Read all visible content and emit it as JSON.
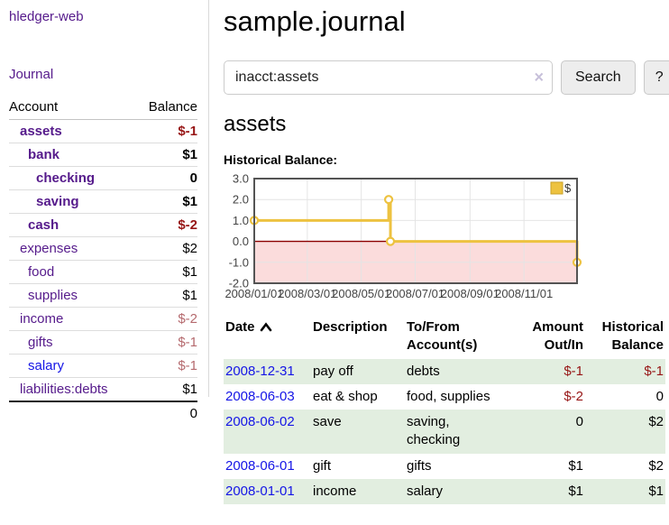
{
  "colors": {
    "link_purple": "#551a8b",
    "link_blue": "#1515e6",
    "negative": "#971616",
    "negative_dim": "#b56a6e",
    "row_shade_green": "#e2eee0",
    "series_gold": "#EDC240"
  },
  "sidebar": {
    "brand": "hledger-web",
    "journal_label": "Journal",
    "accounts_table": {
      "headers": [
        "Account",
        "Balance"
      ],
      "rows": [
        {
          "name": "assets",
          "level": 1,
          "bold": true,
          "balance": "$-1",
          "balance_style": "negative"
        },
        {
          "name": "bank",
          "level": 2,
          "bold": true,
          "balance": "$1",
          "balance_style": "normal"
        },
        {
          "name": "checking",
          "level": 3,
          "bold": true,
          "balance": "0",
          "balance_style": "normal"
        },
        {
          "name": "saving",
          "level": 3,
          "bold": true,
          "balance": "$1",
          "balance_style": "normal"
        },
        {
          "name": "cash",
          "level": 2,
          "bold": true,
          "balance": "$-2",
          "balance_style": "negative"
        },
        {
          "name": "expenses",
          "level": 1,
          "bold": false,
          "balance": "$2",
          "balance_style": "normal"
        },
        {
          "name": "food",
          "level": 2,
          "bold": false,
          "balance": "$1",
          "balance_style": "normal"
        },
        {
          "name": "supplies",
          "level": 2,
          "bold": false,
          "balance": "$1",
          "balance_style": "normal"
        },
        {
          "name": "income",
          "level": 1,
          "bold": false,
          "balance": "$-2",
          "balance_style": "negative-dim"
        },
        {
          "name": "gifts",
          "level": 2,
          "bold": false,
          "balance": "$-1",
          "balance_style": "negative-dim"
        },
        {
          "name": "salary",
          "level": 2,
          "bold": false,
          "balance": "$-1",
          "balance_style": "negative-dim",
          "link_style": "unvisited"
        },
        {
          "name": "liabilities:debts",
          "level": 1,
          "bold": false,
          "balance": "$1",
          "balance_style": "normal"
        }
      ],
      "total": "0"
    }
  },
  "header": {
    "title": "sample.journal"
  },
  "search": {
    "value": "inacct:assets",
    "clear_glyph": "×",
    "button_label": "Search",
    "help_label": "?"
  },
  "account_page": {
    "heading": "assets",
    "chart_label": "Historical Balance:"
  },
  "chart_data": {
    "type": "line",
    "step": true,
    "title": "Historical Balance:",
    "series": [
      {
        "name": "$",
        "color": "#EDC240",
        "points": [
          {
            "date": "2008-01-01",
            "day": 0,
            "value": 1
          },
          {
            "date": "2008-06-01",
            "day": 152,
            "value": 2
          },
          {
            "date": "2008-06-03",
            "day": 154,
            "value": 0
          },
          {
            "date": "2008-12-31",
            "day": 365,
            "value": -1
          }
        ]
      }
    ],
    "ylim": [
      -2,
      3
    ],
    "yticks": [
      "3.0",
      "2.0",
      "1.0",
      "0.0",
      "-1.0",
      "-2.0"
    ],
    "xticks": [
      {
        "label": "2008/01/01",
        "day": 0
      },
      {
        "label": "2008/03/01",
        "day": 60
      },
      {
        "label": "2008/05/01",
        "day": 121
      },
      {
        "label": "2008/07/01",
        "day": 182
      },
      {
        "label": "2008/09/01",
        "day": 244
      },
      {
        "label": "2008/11/01",
        "day": 305
      }
    ],
    "xlim_days": [
      0,
      365
    ],
    "legend": {
      "label": "$",
      "position": "top-right"
    },
    "grid": true,
    "colors": {
      "negative_region": "#fbdcdc",
      "zero_line": "#8b0000",
      "grid": "#e4e4e4",
      "border": "#545454",
      "tick_text": "#444444"
    }
  },
  "register_table": {
    "headers": [
      {
        "lines": [
          "Date"
        ],
        "align": "left",
        "sortable": true,
        "sort": "asc"
      },
      {
        "lines": [
          "Description"
        ],
        "align": "left"
      },
      {
        "lines": [
          "To/From",
          "Account(s)"
        ],
        "align": "left"
      },
      {
        "lines": [
          "Amount",
          "Out/In"
        ],
        "align": "right"
      },
      {
        "lines": [
          "Historical",
          "Balance"
        ],
        "align": "right"
      }
    ],
    "rows": [
      {
        "date": "2008-12-31",
        "description": "pay off",
        "account_lines": [
          "debts"
        ],
        "amount": "$-1",
        "amount_negative": true,
        "balance": "$-1",
        "balance_negative": true,
        "shaded": true
      },
      {
        "date": "2008-06-03",
        "description": "eat & shop",
        "account_lines": [
          "food, supplies"
        ],
        "amount": "$-2",
        "amount_negative": true,
        "balance": "0",
        "balance_negative": false,
        "shaded": false
      },
      {
        "date": "2008-06-02",
        "description": "save",
        "account_lines": [
          "saving,",
          "checking"
        ],
        "amount": "0",
        "amount_negative": false,
        "balance": "$2",
        "balance_negative": false,
        "shaded": true
      },
      {
        "date": "2008-06-01",
        "description": "gift",
        "account_lines": [
          "gifts"
        ],
        "amount": "$1",
        "amount_negative": false,
        "balance": "$2",
        "balance_negative": false,
        "shaded": false
      },
      {
        "date": "2008-01-01",
        "description": "income",
        "account_lines": [
          "salary"
        ],
        "amount": "$1",
        "amount_negative": false,
        "balance": "$1",
        "balance_negative": false,
        "shaded": true
      }
    ]
  }
}
